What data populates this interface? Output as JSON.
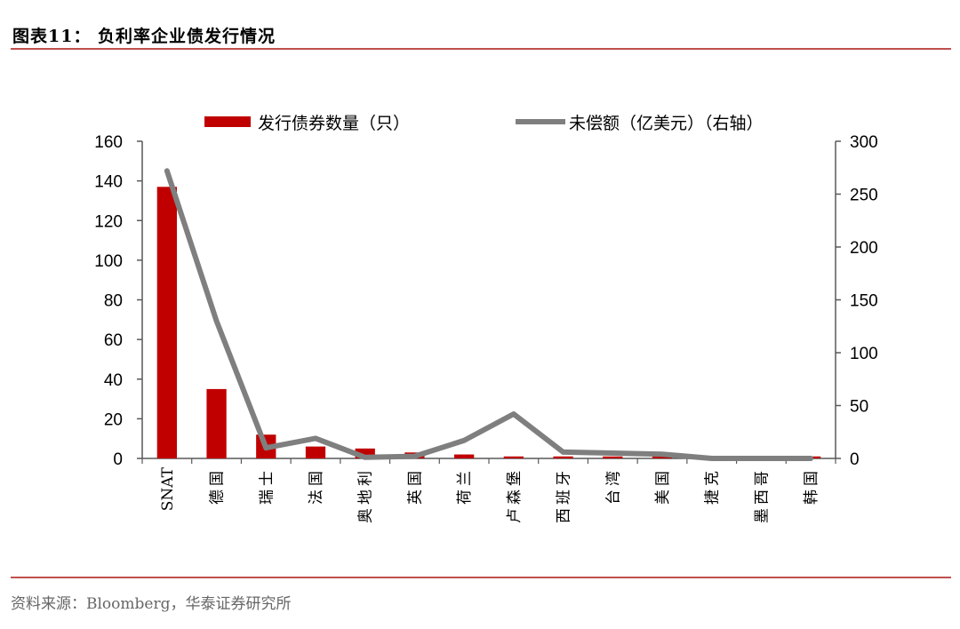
{
  "figure": {
    "title": "图表11：  负利率企业债发行情况",
    "source": "资料来源：Bloomberg，华泰证券研究所"
  },
  "colors": {
    "bar": "#c00000",
    "line": "#7f7f7f",
    "rule": "#c0504d"
  },
  "chart_data": {
    "type": "bar",
    "categories": [
      "SNAT",
      "德国",
      "瑞士",
      "法国",
      "奥地利",
      "英国",
      "荷兰",
      "卢森堡",
      "西班牙",
      "台湾",
      "美国",
      "捷克",
      "墨西哥",
      "韩国"
    ],
    "series": [
      {
        "name": "发行债券数量（只）",
        "type": "bar",
        "axis": "left",
        "values": [
          137,
          35,
          12,
          6,
          5,
          3,
          2,
          1,
          1,
          1,
          1,
          0,
          0,
          1
        ]
      },
      {
        "name": "未偿额（亿美元）（右轴）",
        "type": "line",
        "axis": "right",
        "values": [
          272,
          130,
          10,
          19,
          1,
          2,
          17,
          42,
          6,
          5,
          4,
          0,
          0,
          0
        ]
      }
    ],
    "y_left": {
      "min": 0,
      "max": 160,
      "ticks": [
        "0",
        "20",
        "40",
        "60",
        "80",
        "100",
        "120",
        "140",
        "160"
      ]
    },
    "y_right": {
      "min": 0,
      "max": 300,
      "ticks": [
        "0",
        "50",
        "100",
        "150",
        "200",
        "250",
        "300"
      ]
    },
    "legend_position": "top",
    "grid": false
  }
}
